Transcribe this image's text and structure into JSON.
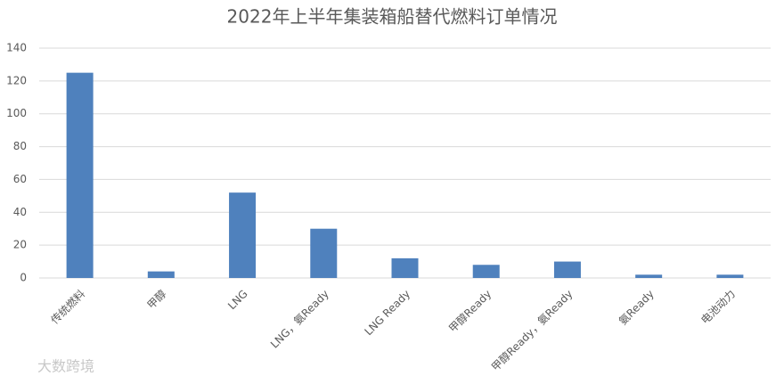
{
  "chart_data": {
    "type": "bar",
    "title": "2022年上半年集装箱船替代燃料订单情况",
    "categories": [
      "传统燃料",
      "甲醇",
      "LNG",
      "LNG，氨Ready",
      "LNG Ready",
      "甲醇Ready",
      "甲醇Ready，氨Ready",
      "氨Ready",
      "电池动力"
    ],
    "values": [
      125,
      4,
      52,
      30,
      12,
      8,
      10,
      2,
      2
    ],
    "color": "#4f81bd",
    "ylim": [
      0,
      140
    ],
    "yticks": [
      0,
      20,
      40,
      60,
      80,
      100,
      120,
      140
    ],
    "grid": true,
    "watermark": "大数跨境"
  }
}
